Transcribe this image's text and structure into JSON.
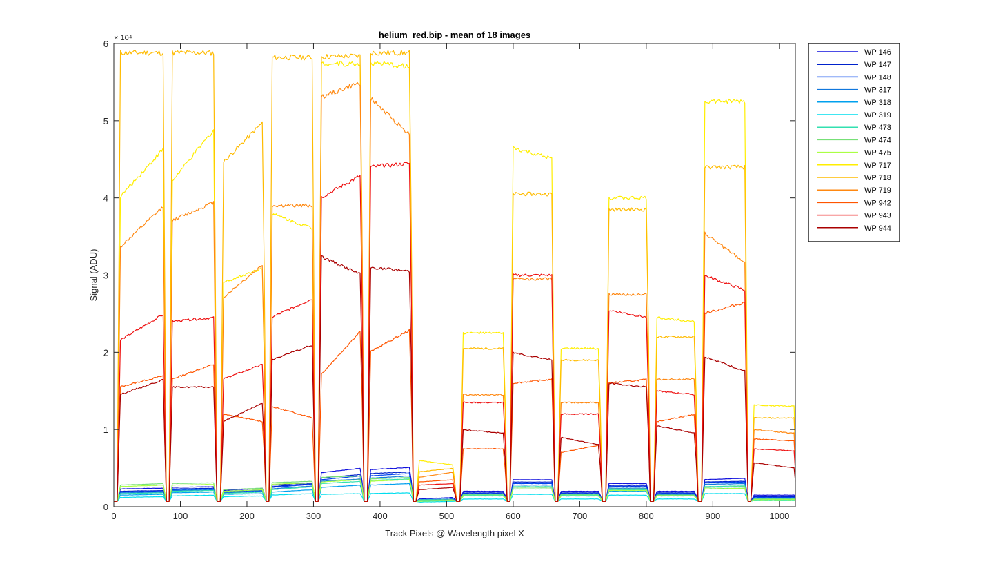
{
  "chart_data": {
    "type": "line",
    "title": "helium_red.bip - mean of 18 images",
    "xlabel": "Track Pixels @ Wavelength pixel X",
    "ylabel": "Signal (ADU)",
    "xlim": [
      0,
      1024
    ],
    "ylim": [
      0,
      60000
    ],
    "y_exponent_label": "× 10⁴",
    "x_ticks": [
      0,
      100,
      200,
      300,
      400,
      500,
      600,
      700,
      800,
      900,
      1000
    ],
    "x_tick_labels": [
      "0",
      "100",
      "200",
      "300",
      "400",
      "500",
      "600",
      "700",
      "800",
      "900",
      "1000"
    ],
    "y_ticks": [
      0,
      10000,
      20000,
      30000,
      40000,
      50000,
      60000
    ],
    "y_tick_labels": [
      "0",
      "1",
      "2",
      "3",
      "4",
      "5",
      "6"
    ],
    "grid": false,
    "legend_position": "outside-right-top",
    "segments": [
      {
        "name": "s1",
        "start": 8,
        "end": 76
      },
      {
        "name": "s2",
        "start": 86,
        "end": 152
      },
      {
        "name": "s3",
        "start": 163,
        "end": 226
      },
      {
        "name": "s4",
        "start": 236,
        "end": 300
      },
      {
        "name": "s5",
        "start": 310,
        "end": 373
      },
      {
        "name": "s6",
        "start": 384,
        "end": 447
      },
      {
        "name": "s7",
        "start": 457,
        "end": 512
      },
      {
        "name": "s8",
        "start": 523,
        "end": 588
      },
      {
        "name": "s9",
        "start": 598,
        "end": 660
      },
      {
        "name": "s10",
        "start": 670,
        "end": 731
      },
      {
        "name": "s11",
        "start": 742,
        "end": 803
      },
      {
        "name": "s12",
        "start": 814,
        "end": 875
      },
      {
        "name": "s13",
        "start": 886,
        "end": 950
      },
      {
        "name": "s14",
        "start": 960,
        "end": 1024
      }
    ],
    "baseline": 700,
    "series": [
      {
        "name": "WP 146",
        "color": "#1111dd",
        "levels": [
          [
            2300,
            2400
          ],
          [
            2500,
            2600
          ],
          [
            2100,
            2400
          ],
          [
            2800,
            3100
          ],
          [
            4400,
            5000
          ],
          [
            4800,
            5100
          ],
          [
            1000,
            1200
          ],
          [
            2000,
            2000
          ],
          [
            3500,
            3500
          ],
          [
            2000,
            2000
          ],
          [
            3000,
            3000
          ],
          [
            2000,
            2000
          ],
          [
            3500,
            3700
          ],
          [
            1500,
            1500
          ]
        ]
      },
      {
        "name": "WP 147",
        "color": "#0022cc",
        "levels": [
          [
            2000,
            2100
          ],
          [
            2300,
            2400
          ],
          [
            2000,
            2200
          ],
          [
            2600,
            3000
          ],
          [
            3700,
            4200
          ],
          [
            4300,
            4500
          ],
          [
            900,
            1000
          ],
          [
            1800,
            1800
          ],
          [
            3200,
            3200
          ],
          [
            1800,
            1800
          ],
          [
            2700,
            2700
          ],
          [
            1800,
            1800
          ],
          [
            3200,
            3300
          ],
          [
            1300,
            1300
          ]
        ]
      },
      {
        "name": "WP 148",
        "color": "#0044ee",
        "levels": [
          [
            1900,
            2000
          ],
          [
            2200,
            2300
          ],
          [
            1900,
            2100
          ],
          [
            2500,
            2900
          ],
          [
            3500,
            4000
          ],
          [
            4000,
            4300
          ],
          [
            900,
            1000
          ],
          [
            1700,
            1700
          ],
          [
            3000,
            3000
          ],
          [
            1700,
            1700
          ],
          [
            2600,
            2600
          ],
          [
            1700,
            1700
          ],
          [
            3100,
            3200
          ],
          [
            1200,
            1200
          ]
        ]
      },
      {
        "name": "WP 317",
        "color": "#1177dd",
        "levels": [
          [
            1800,
            1900
          ],
          [
            2100,
            2200
          ],
          [
            1800,
            2000
          ],
          [
            2300,
            2700
          ],
          [
            3300,
            3600
          ],
          [
            3700,
            4000
          ],
          [
            900,
            1000
          ],
          [
            1600,
            1600
          ],
          [
            2800,
            2800
          ],
          [
            1600,
            1600
          ],
          [
            2400,
            2400
          ],
          [
            1600,
            1600
          ],
          [
            2900,
            3000
          ],
          [
            1100,
            1100
          ]
        ]
      },
      {
        "name": "WP 318",
        "color": "#00a0ee",
        "levels": [
          [
            1500,
            1600
          ],
          [
            1800,
            1900
          ],
          [
            1600,
            1700
          ],
          [
            1900,
            2200
          ],
          [
            2500,
            2800
          ],
          [
            2800,
            3000
          ],
          [
            800,
            900
          ],
          [
            1400,
            1400
          ],
          [
            2300,
            2300
          ],
          [
            1400,
            1400
          ],
          [
            2000,
            2000
          ],
          [
            1400,
            1400
          ],
          [
            2300,
            2400
          ],
          [
            1000,
            1000
          ]
        ]
      },
      {
        "name": "WP 319",
        "color": "#00ddee",
        "levels": [
          [
            1200,
            1300
          ],
          [
            1400,
            1500
          ],
          [
            1300,
            1400
          ],
          [
            1500,
            1700
          ],
          [
            1600,
            1700
          ],
          [
            1700,
            1800
          ],
          [
            600,
            700
          ],
          [
            1000,
            1000
          ],
          [
            1600,
            1600
          ],
          [
            1000,
            1000
          ],
          [
            1500,
            1500
          ],
          [
            1000,
            1000
          ],
          [
            1700,
            1700
          ],
          [
            800,
            800
          ]
        ]
      },
      {
        "name": "WP 473",
        "color": "#33e0b0",
        "levels": [
          [
            1700,
            1800
          ],
          [
            2000,
            2100
          ],
          [
            1700,
            1900
          ],
          [
            2200,
            2600
          ],
          [
            3000,
            3300
          ],
          [
            3400,
            3600
          ],
          [
            900,
            900
          ],
          [
            1500,
            1500
          ],
          [
            2600,
            2600
          ],
          [
            1500,
            1500
          ],
          [
            2200,
            2200
          ],
          [
            1500,
            1500
          ],
          [
            2600,
            2700
          ],
          [
            1000,
            1000
          ]
        ]
      },
      {
        "name": "WP 474",
        "color": "#77e077",
        "levels": [
          [
            2800,
            3000
          ],
          [
            3000,
            3100
          ],
          [
            2200,
            2400
          ],
          [
            3100,
            3300
          ],
          [
            3800,
            4000
          ],
          [
            3600,
            3800
          ],
          [
            800,
            900
          ],
          [
            1600,
            1600
          ],
          [
            2500,
            2500
          ],
          [
            1600,
            1600
          ],
          [
            2300,
            2300
          ],
          [
            1500,
            1500
          ],
          [
            2500,
            2600
          ],
          [
            1000,
            1000
          ]
        ]
      },
      {
        "name": "WP 475",
        "color": "#aaff44",
        "levels": [
          [
            2600,
            2800
          ],
          [
            2800,
            2900
          ],
          [
            2000,
            2200
          ],
          [
            2900,
            3100
          ],
          [
            3200,
            3500
          ],
          [
            3300,
            3500
          ],
          [
            700,
            800
          ],
          [
            1400,
            1400
          ],
          [
            2300,
            2300
          ],
          [
            1400,
            1400
          ],
          [
            2100,
            2100
          ],
          [
            1400,
            1400
          ],
          [
            2300,
            2400
          ],
          [
            900,
            900
          ]
        ]
      },
      {
        "name": "WP 717",
        "color": "#ffee00",
        "levels": [
          [
            40000,
            46500
          ],
          [
            42000,
            49000
          ],
          [
            29000,
            31000
          ],
          [
            38000,
            36000
          ],
          [
            57500,
            57300
          ],
          [
            57500,
            57000
          ],
          [
            6000,
            5400
          ],
          [
            22500,
            22500
          ],
          [
            46500,
            45000
          ],
          [
            20500,
            20500
          ],
          [
            40000,
            40000
          ],
          [
            24500,
            24000
          ],
          [
            52500,
            52500
          ],
          [
            13200,
            13000
          ]
        ]
      },
      {
        "name": "WP 718",
        "color": "#ffbb00",
        "levels": [
          [
            58800,
            58800
          ],
          [
            58800,
            58800
          ],
          [
            44500,
            50000
          ],
          [
            58200,
            58200
          ],
          [
            58300,
            58400
          ],
          [
            58800,
            58800
          ],
          [
            4500,
            5000
          ],
          [
            20500,
            20500
          ],
          [
            40500,
            40500
          ],
          [
            19000,
            19000
          ],
          [
            38500,
            38500
          ],
          [
            22000,
            22000
          ],
          [
            44000,
            44000
          ],
          [
            11500,
            11500
          ]
        ]
      },
      {
        "name": "WP 719",
        "color": "#ff8811",
        "levels": [
          [
            33500,
            39000
          ],
          [
            37000,
            39500
          ],
          [
            27000,
            31500
          ],
          [
            39000,
            39000
          ],
          [
            53000,
            55000
          ],
          [
            53000,
            48000
          ],
          [
            3800,
            4500
          ],
          [
            14500,
            14500
          ],
          [
            29500,
            29500
          ],
          [
            13500,
            13500
          ],
          [
            27500,
            27500
          ],
          [
            16500,
            16500
          ],
          [
            35500,
            31500
          ],
          [
            10000,
            9500
          ]
        ]
      },
      {
        "name": "WP 942",
        "color": "#ff5500",
        "levels": [
          [
            15500,
            17000
          ],
          [
            16500,
            18500
          ],
          [
            12000,
            11000
          ],
          [
            13000,
            11500
          ],
          [
            17000,
            23000
          ],
          [
            20000,
            23000
          ],
          [
            3200,
            3500
          ],
          [
            7500,
            7500
          ],
          [
            16000,
            16500
          ],
          [
            7000,
            8000
          ],
          [
            16000,
            16500
          ],
          [
            11000,
            12000
          ],
          [
            25000,
            26500
          ],
          [
            8800,
            8500
          ]
        ]
      },
      {
        "name": "WP 943",
        "color": "#ee1111",
        "levels": [
          [
            21500,
            25000
          ],
          [
            24000,
            24500
          ],
          [
            16500,
            18500
          ],
          [
            24500,
            27000
          ],
          [
            40000,
            43000
          ],
          [
            44000,
            44500
          ],
          [
            2800,
            3000
          ],
          [
            13500,
            13500
          ],
          [
            30000,
            30000
          ],
          [
            12000,
            12000
          ],
          [
            25500,
            24500
          ],
          [
            15000,
            14500
          ],
          [
            30000,
            28000
          ],
          [
            7500,
            7200
          ]
        ]
      },
      {
        "name": "WP 944",
        "color": "#aa0000",
        "levels": [
          [
            14500,
            16500
          ],
          [
            15500,
            15500
          ],
          [
            11000,
            13500
          ],
          [
            19000,
            21000
          ],
          [
            32500,
            30000
          ],
          [
            31000,
            30500
          ],
          [
            2200,
            2500
          ],
          [
            10000,
            9500
          ],
          [
            20000,
            19000
          ],
          [
            9000,
            8000
          ],
          [
            16000,
            15500
          ],
          [
            10500,
            9500
          ],
          [
            19500,
            17500
          ],
          [
            5700,
            5000
          ]
        ]
      }
    ]
  }
}
